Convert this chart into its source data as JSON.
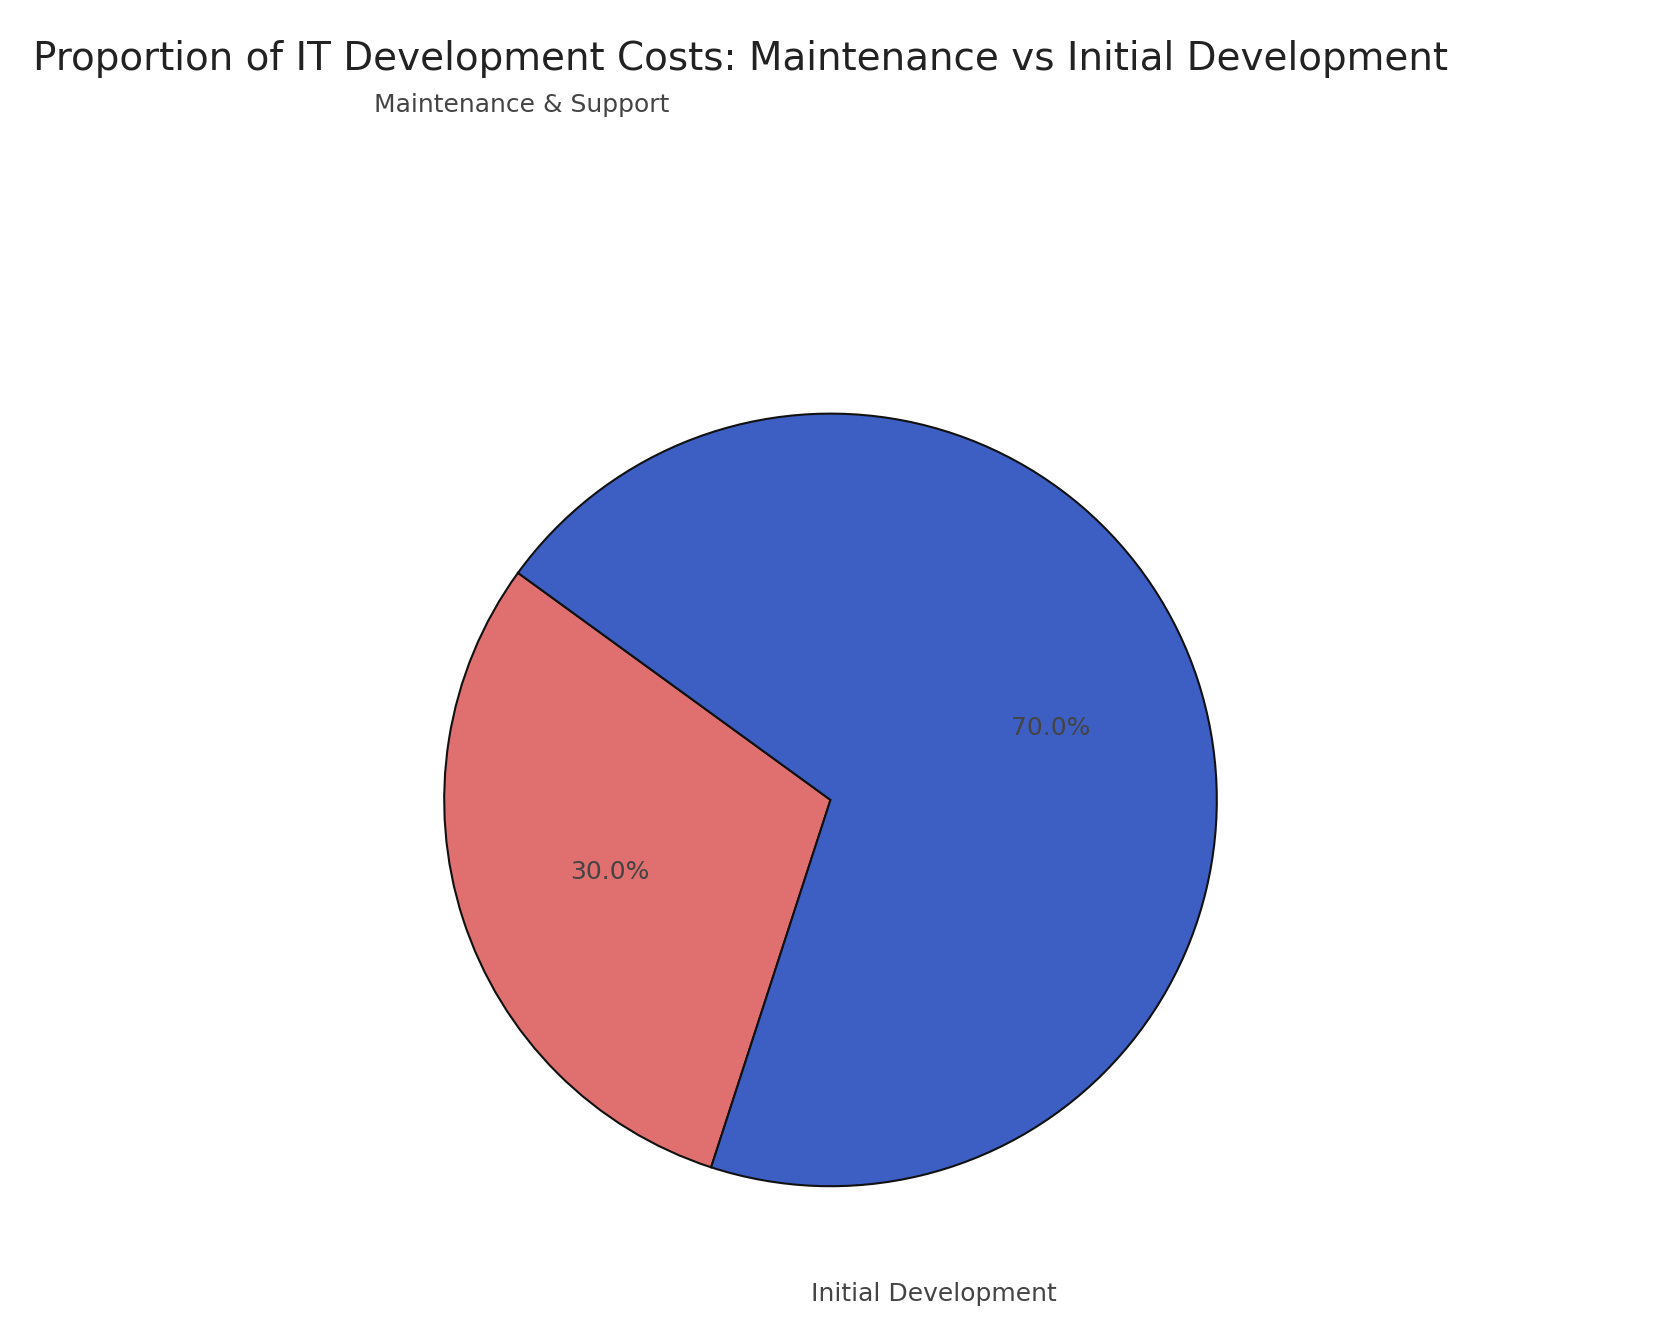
{
  "title": "Proportion of IT Development Costs: Maintenance vs Initial Development",
  "slices": [
    {
      "label": "Maintenance & Support",
      "value": 30.0,
      "color": "#E07070"
    },
    {
      "label": "Initial Development",
      "value": 70.0,
      "color": "#3D5FC4"
    }
  ],
  "autopct_fontsize": 18,
  "label_fontsize": 18,
  "title_fontsize": 28,
  "label_color": "#444444",
  "edge_color": "#111111",
  "edge_linewidth": 1.5,
  "background_color": "#ffffff",
  "startangle": 144,
  "pct_distance": 0.6,
  "label_distance": 1.15
}
